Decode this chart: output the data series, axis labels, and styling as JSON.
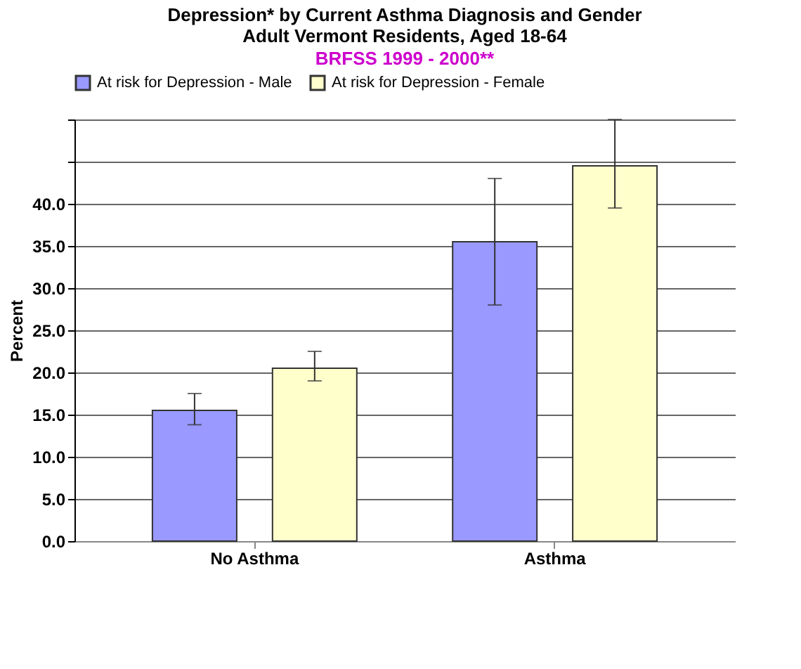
{
  "chart_data": {
    "type": "bar",
    "title": [
      "Depression* by Current Asthma Diagnosis and Gender",
      "Adult Vermont Residents, Aged 18-64"
    ],
    "subtitle": "BRFSS 1999 - 2000**",
    "ylabel": "Percent",
    "categories": [
      "No Asthma",
      "Asthma"
    ],
    "series": [
      {
        "name": "At risk for Depression - Male",
        "color": "#9999ff",
        "values": [
          15.5,
          35.5
        ],
        "errors": [
          [
            13.8,
            17.5
          ],
          [
            28,
            43
          ]
        ]
      },
      {
        "name": "At risk for Depression - Female",
        "color": "#ffffcc",
        "values": [
          20.5,
          44.5
        ],
        "errors": [
          [
            19,
            22.5
          ],
          [
            39.5,
            50
          ]
        ]
      }
    ],
    "ylim": [
      0,
      50
    ],
    "yticks": [
      {
        "value": 0,
        "label": "0.0"
      },
      {
        "value": 5,
        "label": "5.0"
      },
      {
        "value": 10,
        "label": "10.0"
      },
      {
        "value": 15,
        "label": "15.0"
      },
      {
        "value": 20,
        "label": "20.0"
      },
      {
        "value": 25,
        "label": "25.0"
      },
      {
        "value": 30,
        "label": "30.0"
      },
      {
        "value": 35,
        "label": "35.0"
      },
      {
        "value": 40,
        "label": "40.0"
      },
      {
        "value": 45,
        "label": null
      },
      {
        "value": 50,
        "label": null
      }
    ],
    "grid": "y",
    "legend": "top"
  }
}
